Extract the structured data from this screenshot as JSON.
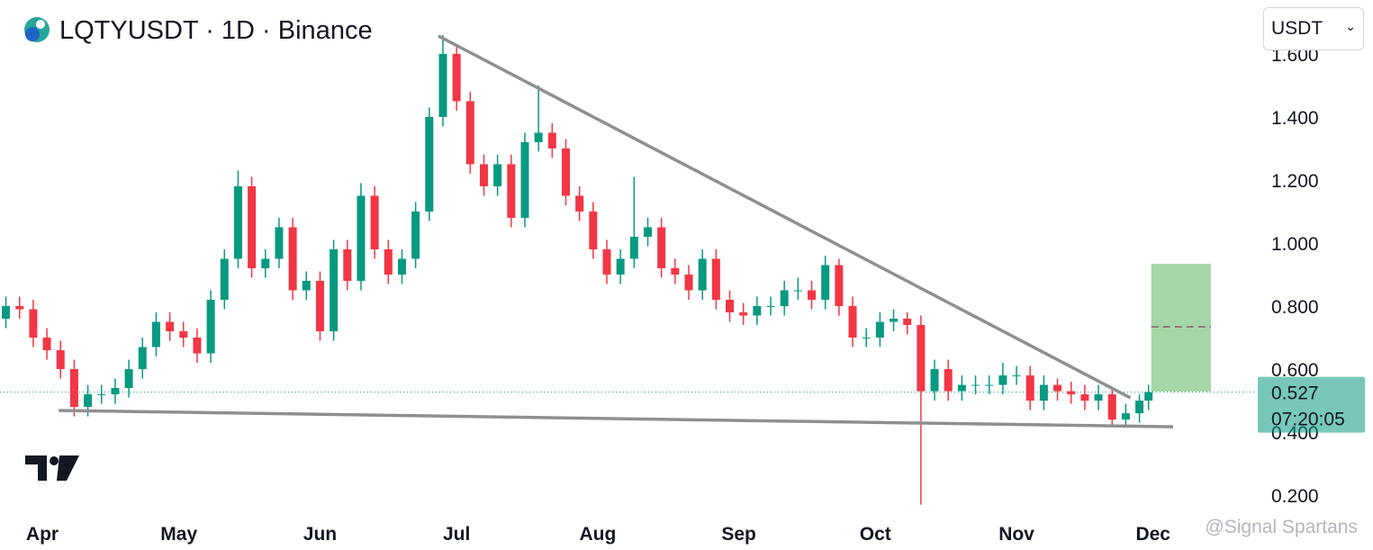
{
  "chart_data": {
    "type": "candlestick",
    "title": "LQTYUSDT · 1D · Binance",
    "currency": "USDT",
    "countdown": "07:20:05",
    "watermark": "@Signal Spartans",
    "up_color": "#089981",
    "down_color": "#f23645",
    "xlim": [
      -9.3,
      266.6
    ],
    "ylim": [
      0.129,
      1.771
    ],
    "xticks": [
      {
        "value": 0,
        "label": "Apr"
      },
      {
        "value": 30,
        "label": "May"
      },
      {
        "value": 61,
        "label": "Jun"
      },
      {
        "value": 91,
        "label": "Jul"
      },
      {
        "value": 122,
        "label": "Aug"
      },
      {
        "value": 153,
        "label": "Sep"
      },
      {
        "value": 183,
        "label": "Oct"
      },
      {
        "value": 214,
        "label": "Nov"
      },
      {
        "value": 244,
        "label": "Dec"
      }
    ],
    "yticks": [
      {
        "value": 0.2,
        "label": "0.200"
      },
      {
        "value": 0.4,
        "label": "0.400"
      },
      {
        "value": 0.6,
        "label": "0.600"
      },
      {
        "value": 0.8,
        "label": "0.800"
      },
      {
        "value": 1.0,
        "label": "1.000"
      },
      {
        "value": 1.2,
        "label": "1.200"
      },
      {
        "value": 1.4,
        "label": "1.400"
      },
      {
        "value": 1.6,
        "label": "1.600"
      }
    ],
    "x": [
      -8,
      -5,
      -2,
      1,
      4,
      7,
      10,
      13,
      16,
      19,
      22,
      25,
      28,
      31,
      34,
      37,
      40,
      43,
      46,
      49,
      52,
      55,
      58,
      61,
      64,
      67,
      70,
      73,
      76,
      79,
      82,
      85,
      88,
      91,
      94,
      97,
      100,
      103,
      106,
      109,
      112,
      115,
      118,
      121,
      124,
      127,
      130,
      133,
      136,
      139,
      142,
      145,
      148,
      151,
      154,
      157,
      160,
      163,
      166,
      169,
      172,
      175,
      178,
      181,
      184,
      187,
      190,
      193,
      196,
      199,
      202,
      205,
      208,
      211,
      214,
      217,
      220,
      223,
      226,
      229,
      232,
      235,
      238,
      241,
      243
    ],
    "open": [
      0.76,
      0.8,
      0.79,
      0.7,
      0.66,
      0.6,
      0.48,
      0.52,
      0.52,
      0.54,
      0.6,
      0.67,
      0.75,
      0.72,
      0.7,
      0.65,
      0.82,
      0.95,
      1.18,
      0.92,
      0.95,
      1.05,
      0.85,
      0.88,
      0.72,
      0.98,
      0.88,
      1.15,
      0.98,
      0.9,
      0.95,
      1.1,
      1.4,
      1.6,
      1.45,
      1.25,
      1.18,
      1.25,
      1.08,
      1.32,
      1.35,
      1.3,
      1.15,
      1.1,
      0.98,
      0.9,
      0.95,
      1.02,
      1.05,
      0.92,
      0.9,
      0.85,
      0.95,
      0.82,
      0.78,
      0.77,
      0.8,
      0.8,
      0.85,
      0.85,
      0.82,
      0.93,
      0.8,
      0.7,
      0.7,
      0.75,
      0.76,
      0.74,
      0.53,
      0.6,
      0.53,
      0.55,
      0.55,
      0.55,
      0.58,
      0.58,
      0.5,
      0.55,
      0.53,
      0.52,
      0.5,
      0.52,
      0.44,
      0.46,
      0.5
    ],
    "high": [
      0.83,
      0.83,
      0.82,
      0.73,
      0.69,
      0.63,
      0.55,
      0.55,
      0.57,
      0.63,
      0.7,
      0.78,
      0.78,
      0.75,
      0.73,
      0.85,
      0.98,
      1.23,
      1.21,
      0.98,
      1.08,
      1.08,
      0.91,
      0.91,
      1.01,
      1.01,
      1.19,
      1.18,
      1.01,
      0.98,
      1.13,
      1.43,
      1.66,
      1.63,
      1.48,
      1.28,
      1.28,
      1.28,
      1.35,
      1.5,
      1.38,
      1.33,
      1.18,
      1.13,
      1.01,
      0.98,
      1.21,
      1.08,
      1.08,
      0.95,
      0.93,
      0.98,
      0.98,
      0.85,
      0.81,
      0.83,
      0.83,
      0.88,
      0.89,
      0.88,
      0.96,
      0.95,
      0.83,
      0.73,
      0.78,
      0.79,
      0.78,
      0.77,
      0.63,
      0.63,
      0.58,
      0.58,
      0.58,
      0.62,
      0.61,
      0.61,
      0.58,
      0.57,
      0.56,
      0.55,
      0.55,
      0.54,
      0.49,
      0.52,
      0.55
    ],
    "low": [
      0.73,
      0.76,
      0.67,
      0.63,
      0.57,
      0.45,
      0.45,
      0.49,
      0.49,
      0.51,
      0.57,
      0.64,
      0.69,
      0.67,
      0.62,
      0.62,
      0.79,
      0.92,
      0.89,
      0.89,
      0.92,
      0.82,
      0.82,
      0.69,
      0.69,
      0.85,
      0.85,
      0.95,
      0.87,
      0.87,
      0.92,
      1.07,
      1.37,
      1.42,
      1.22,
      1.15,
      1.15,
      1.05,
      1.05,
      1.29,
      1.27,
      1.12,
      1.07,
      0.95,
      0.87,
      0.87,
      0.92,
      0.99,
      0.89,
      0.87,
      0.82,
      0.82,
      0.79,
      0.75,
      0.74,
      0.74,
      0.77,
      0.77,
      0.82,
      0.79,
      0.79,
      0.77,
      0.67,
      0.67,
      0.67,
      0.72,
      0.71,
      0.17,
      0.5,
      0.5,
      0.5,
      0.52,
      0.52,
      0.52,
      0.55,
      0.47,
      0.47,
      0.5,
      0.49,
      0.47,
      0.47,
      0.42,
      0.42,
      0.43,
      0.47
    ],
    "close": [
      0.8,
      0.79,
      0.7,
      0.66,
      0.6,
      0.48,
      0.52,
      0.52,
      0.54,
      0.6,
      0.67,
      0.75,
      0.72,
      0.7,
      0.65,
      0.82,
      0.95,
      1.18,
      0.92,
      0.95,
      1.05,
      0.85,
      0.88,
      0.72,
      0.98,
      0.88,
      1.15,
      0.98,
      0.9,
      0.95,
      1.1,
      1.4,
      1.6,
      1.45,
      1.25,
      1.18,
      1.25,
      1.08,
      1.32,
      1.35,
      1.3,
      1.15,
      1.1,
      0.98,
      0.9,
      0.95,
      1.02,
      1.05,
      0.92,
      0.9,
      0.85,
      0.95,
      0.82,
      0.78,
      0.77,
      0.8,
      0.8,
      0.85,
      0.85,
      0.82,
      0.93,
      0.8,
      0.7,
      0.7,
      0.75,
      0.76,
      0.74,
      0.53,
      0.6,
      0.53,
      0.55,
      0.55,
      0.55,
      0.58,
      0.58,
      0.5,
      0.55,
      0.53,
      0.52,
      0.5,
      0.52,
      0.44,
      0.46,
      0.5,
      0.527
    ],
    "trendlines": [
      {
        "x": [
          87,
          239
        ],
        "y": [
          1.657,
          0.509
        ]
      },
      {
        "x": [
          3.6,
          248.4
        ],
        "y": [
          0.469,
          0.417
        ]
      }
    ],
    "target_zone": {
      "x": [
        243.6,
        256.7
      ],
      "y": [
        0.529,
        0.934
      ],
      "mid": 0.734,
      "color": "#a5d6a7"
    }
  }
}
